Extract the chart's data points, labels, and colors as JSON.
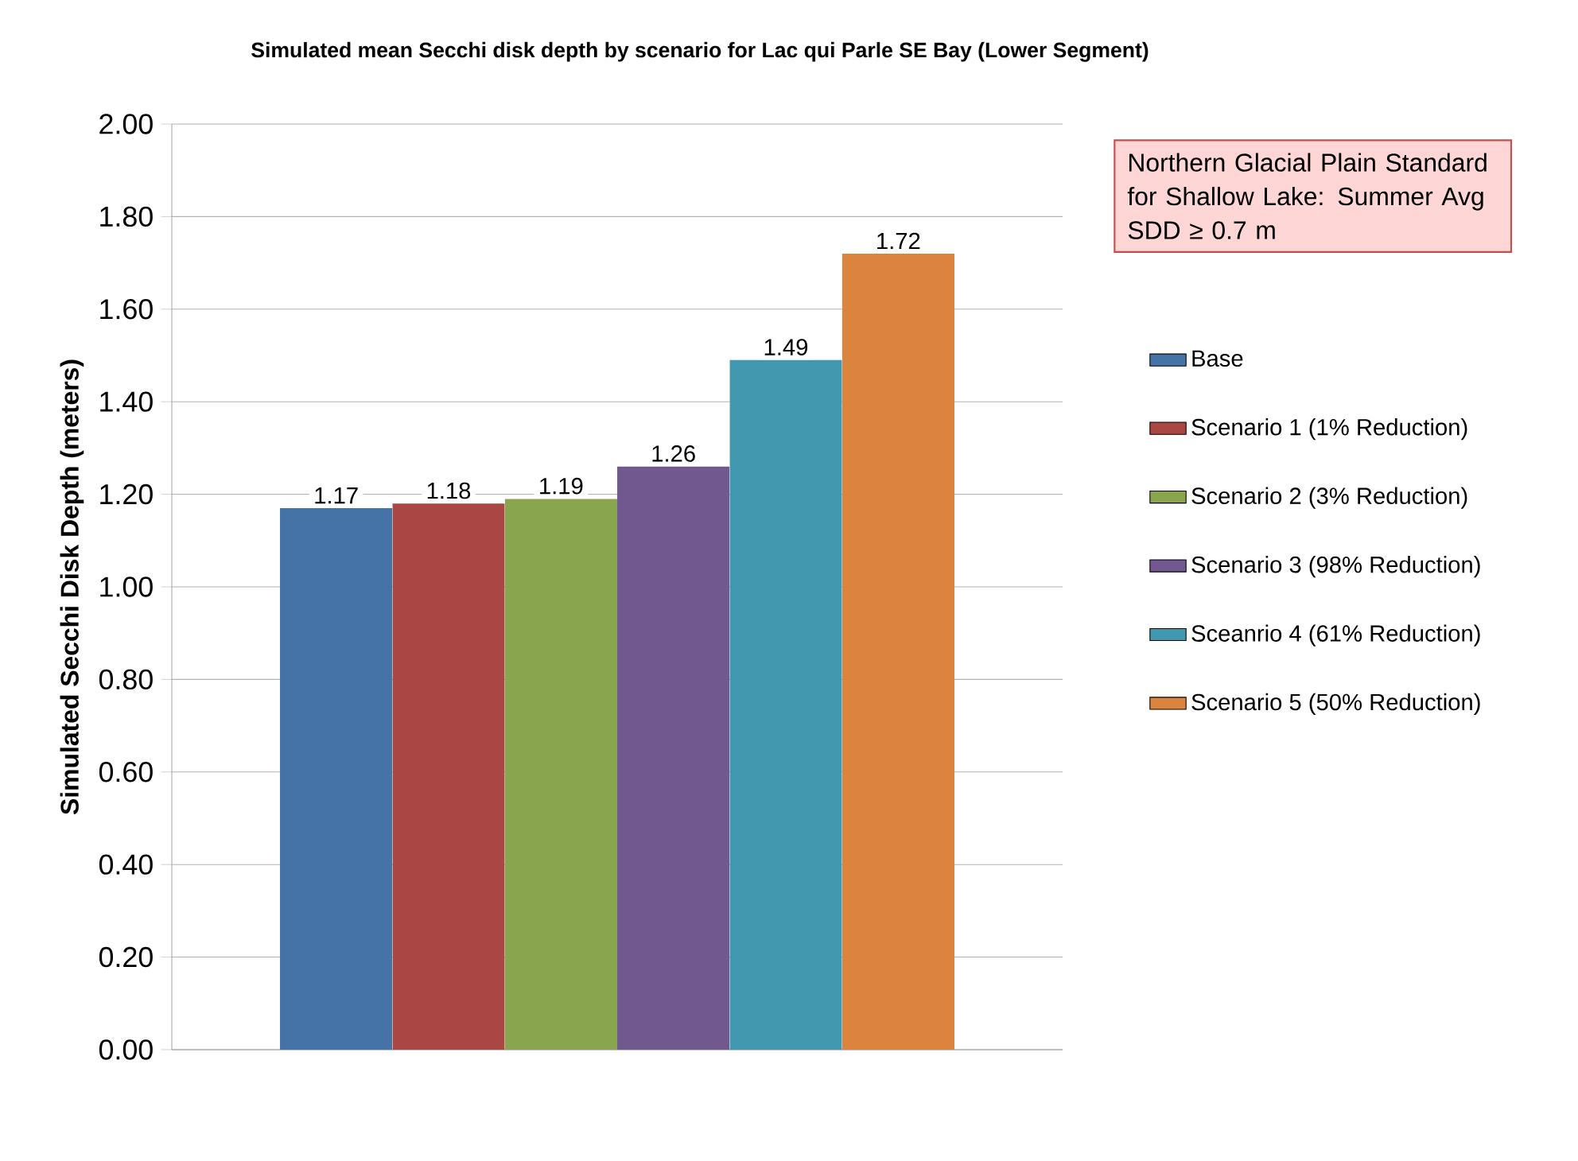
{
  "chart_data": {
    "type": "bar",
    "title": "Simulated mean Secchi disk depth by scenario for Lac qui Parle SE Bay (Lower Segment)",
    "ylabel": "Simulated Secchi Disk Depth (meters)",
    "annotations": [
      "Northern Glacial Plain Standard for Shallow Lake: Summer Avg SDD ≥ 0.7 m"
    ],
    "categories": [
      null
    ],
    "series": [
      {
        "name": "Base",
        "color": "#4572a7",
        "values": [
          1.17
        ]
      },
      {
        "name": "Scenario 1 (1% Reduction)",
        "color": "#aa4643",
        "values": [
          1.18
        ]
      },
      {
        "name": "Scenario 2 (3% Reduction)",
        "color": "#89a54e",
        "values": [
          1.19
        ]
      },
      {
        "name": "Scenario 3 (98% Reduction)",
        "color": "#71588f",
        "values": [
          1.26
        ]
      },
      {
        "name": "Sceanrio 4 (61% Reduction)",
        "color": "#4198af",
        "values": [
          1.49
        ]
      },
      {
        "name": "Scenario 5 (50% Reduction)",
        "color": "#db843d",
        "values": [
          1.72
        ]
      }
    ],
    "ylim": [
      0,
      2
    ],
    "yticks": [
      {
        "value": 0,
        "label": "0.00"
      },
      {
        "value": 0.2,
        "label": "0.20"
      },
      {
        "value": 0.4,
        "label": "0.40"
      },
      {
        "value": 0.6,
        "label": "0.60"
      },
      {
        "value": 0.8,
        "label": "0.80"
      },
      {
        "value": 1,
        "label": "1.00"
      },
      {
        "value": 1.2,
        "label": "1.20"
      },
      {
        "value": 1.4,
        "label": "1.40"
      },
      {
        "value": 1.6,
        "label": "1.60"
      },
      {
        "value": 1.8,
        "label": "1.80"
      },
      {
        "value": 2,
        "label": "2.00"
      }
    ],
    "grid": "y",
    "legend": "right",
    "data_labels": true
  }
}
